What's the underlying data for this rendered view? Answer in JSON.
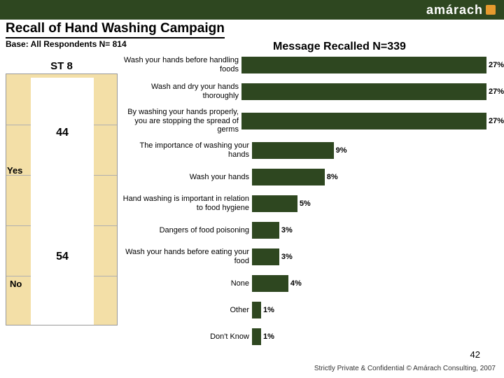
{
  "brand": "amárach",
  "title": "Recall of Hand Washing Campaign",
  "base_text": "Base: All Respondents N= 814",
  "right_title": "Message Recalled N=339",
  "left_chart": {
    "label": "ST 8",
    "bg_color": "#f3dfa7",
    "bar_color": "#ffffff",
    "yes_label": "Yes",
    "no_label": "No",
    "yes_value": "44",
    "no_value": "54",
    "yes_num": 44,
    "no_num": 54,
    "bar_font_size": 16,
    "label_font_size": 13
  },
  "right_chart": {
    "bar_color": "#2e4720",
    "max": 27,
    "track_width": 350,
    "items": [
      {
        "label": "Wash your hands before handling foods",
        "pct": 27,
        "pct_label": "27%"
      },
      {
        "label": "Wash and dry your hands thoroughly",
        "pct": 27,
        "pct_label": "27%"
      },
      {
        "label": "By washing your hands properly, you are stopping the spread of germs",
        "pct": 27,
        "pct_label": "27%"
      },
      {
        "label": "The importance of washing your hands",
        "pct": 9,
        "pct_label": "9%"
      },
      {
        "label": "Wash your hands",
        "pct": 8,
        "pct_label": "8%"
      },
      {
        "label": "Hand washing is important in relation to food hygiene",
        "pct": 5,
        "pct_label": "5%"
      },
      {
        "label": "Dangers of food poisoning",
        "pct": 3,
        "pct_label": "3%"
      },
      {
        "label": "Wash your hands before eating your food",
        "pct": 3,
        "pct_label": "3%"
      },
      {
        "label": "None",
        "pct": 4,
        "pct_label": "4%"
      },
      {
        "label": "Other",
        "pct": 1,
        "pct_label": "1%"
      },
      {
        "label": "Don't Know",
        "pct": 1,
        "pct_label": "1%"
      }
    ]
  },
  "page_number": "42",
  "footer": "Strictly Private & Confidential © Amárach Consulting, 2007"
}
